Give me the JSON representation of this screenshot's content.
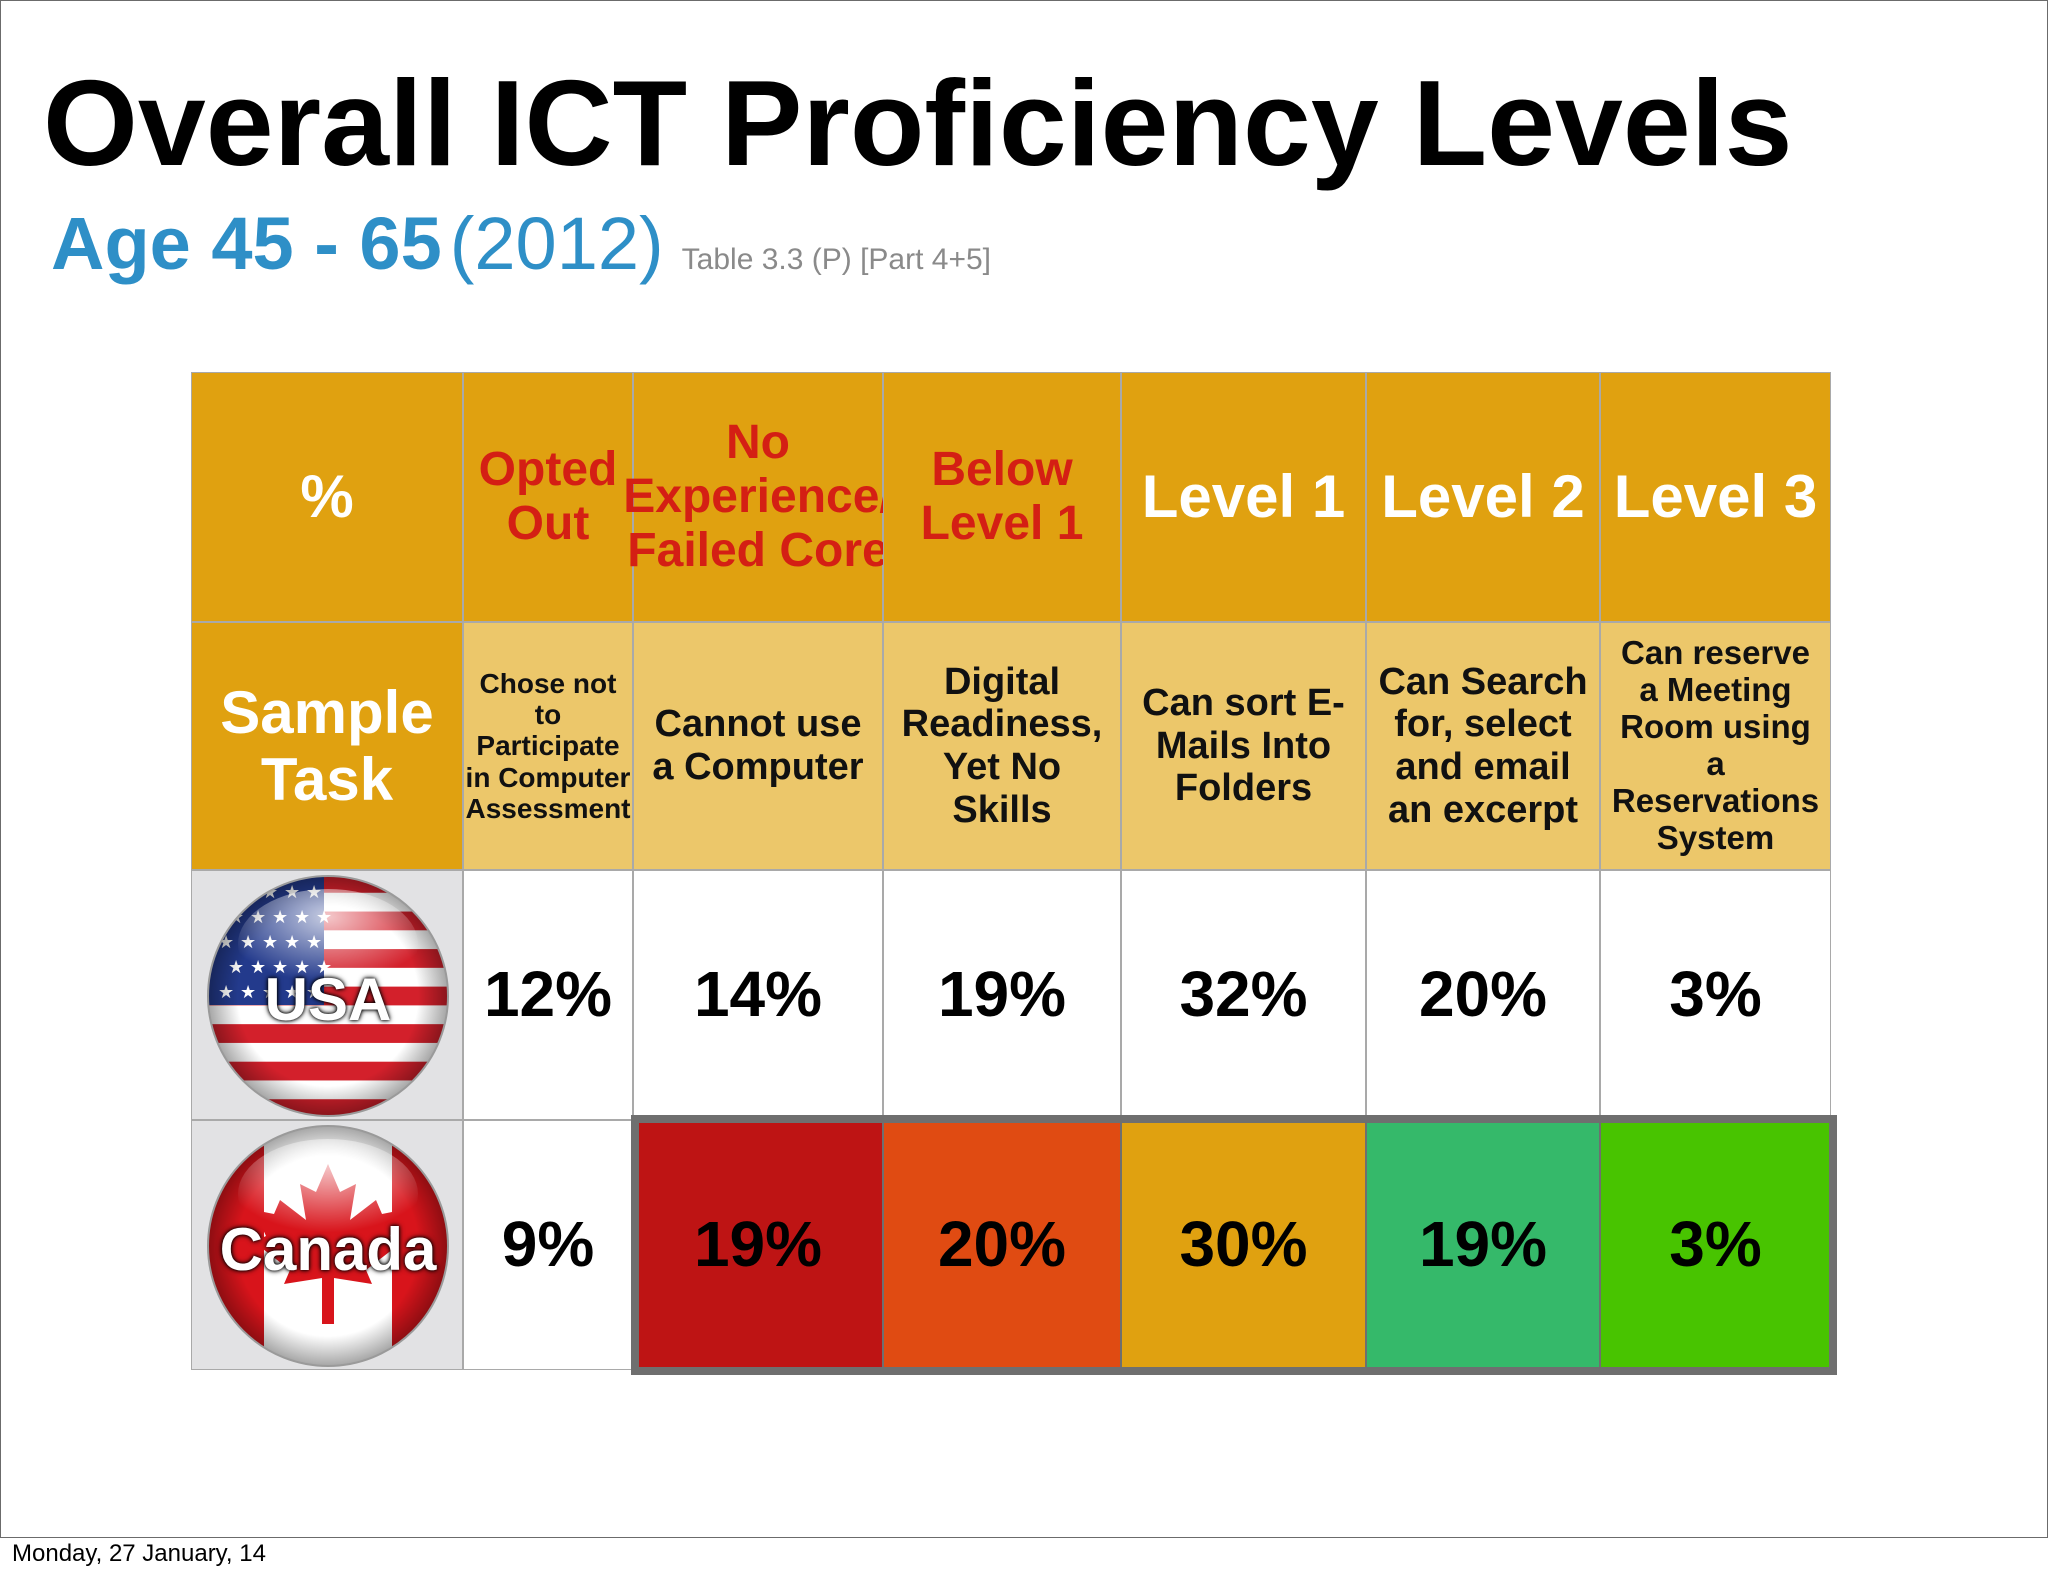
{
  "slide": {
    "title": "Overall ICT Proficiency Levels",
    "subtitle_age": "Age 45 - 65",
    "subtitle_year": "(2012)",
    "subtitle_ref": "Table 3.3 (P) [Part 4+5]",
    "footer": "Monday, 27 January, 14"
  },
  "colors": {
    "header": "#e0a110",
    "task_row": "#ecc76a",
    "header_red_text": "#d41f14",
    "subtitle_blue": "#2e8fc7",
    "canada_no_experience": "#be1414",
    "canada_below_level1": "#e04b12",
    "canada_level1": "#e0a110",
    "canada_level2": "#35b96a",
    "canada_level3": "#48c400"
  },
  "chart_data": {
    "type": "table",
    "columns": [
      "%",
      "Opted Out",
      "No Experience/ Failed Core",
      "Below Level 1",
      "Level 1",
      "Level 2",
      "Level 3"
    ],
    "sample_task": {
      "label": "Sample Task",
      "values": [
        "Chose not to Participate in Computer Assessment",
        "Cannot use a Computer",
        "Digital Readiness, Yet No Skills",
        "Can sort E-Mails Into Folders",
        "Can Search for, select and email an excerpt",
        "Can reserve a Meeting Room using a Reservations System"
      ]
    },
    "rows": [
      {
        "country": "USA",
        "values": [
          "12%",
          "14%",
          "19%",
          "32%",
          "20%",
          "3%"
        ]
      },
      {
        "country": "Canada",
        "values": [
          "9%",
          "19%",
          "20%",
          "30%",
          "19%",
          "3%"
        ]
      }
    ]
  }
}
